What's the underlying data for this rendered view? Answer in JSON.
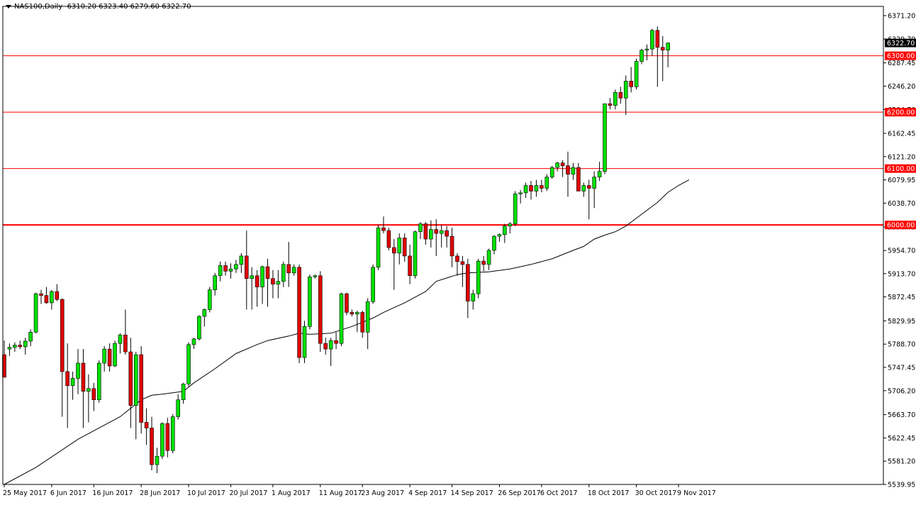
{
  "header": {
    "symbol": "NAS100,Daily",
    "ohlc": "6310.20 6323.40 6279.60 6322.70"
  },
  "colors": {
    "up": "#00e000",
    "down": "#e00000",
    "wick": "#000000",
    "level_line": "#ff0000",
    "ma_line": "#000000",
    "background": "#ffffff",
    "price_tag_bg": "#ff0000",
    "current_tag_bg": "#000000"
  },
  "chart_data": {
    "type": "candlestick",
    "title": "NAS100,Daily",
    "ylim": [
      5539.95,
      6371.2
    ],
    "y_ticks": [
      "6371.20",
      "6329.70",
      "6287.45",
      "6246.20",
      "6204.70",
      "6162.45",
      "6121.20",
      "6079.95",
      "6038.70",
      "5996.45",
      "5954.70",
      "5913.70",
      "5872.45",
      "5829.95",
      "5788.70",
      "5747.45",
      "5706.20",
      "5663.70",
      "5622.45",
      "5581.20",
      "5539.95"
    ],
    "x_labels": [
      "25 May 2017",
      "6 Jun 2017",
      "16 Jun 2017",
      "28 Jun 2017",
      "10 Jul 2017",
      "20 Jul 2017",
      "1 Aug 2017",
      "11 Aug 2017",
      "23 Aug 2017",
      "4 Sep 2017",
      "14 Sep 2017",
      "26 Sep 2017",
      "6 Oct 2017",
      "18 Oct 2017",
      "30 Oct 2017",
      "9 Nov 2017"
    ],
    "x_label_bar_index": [
      0,
      9,
      17,
      26,
      35,
      43,
      51,
      60,
      68,
      77,
      85,
      94,
      102,
      111,
      120,
      128
    ],
    "horizontal_levels": [
      {
        "price": 6300,
        "label": "6300.00",
        "width": 1
      },
      {
        "price": 6200,
        "label": "6200.00",
        "width": 1
      },
      {
        "price": 6100,
        "label": "6100.00",
        "width": 1
      },
      {
        "price": 6000,
        "label": "6000.00",
        "width": 2
      }
    ],
    "current_price": {
      "price": 6322.7,
      "label": "6322.70"
    },
    "candles": [
      [
        5770,
        5795,
        5730,
        5730
      ],
      [
        5780,
        5790,
        5768,
        5783
      ],
      [
        5783,
        5792,
        5775,
        5787
      ],
      [
        5787,
        5795,
        5780,
        5784
      ],
      [
        5784,
        5800,
        5770,
        5794
      ],
      [
        5794,
        5815,
        5785,
        5810
      ],
      [
        5810,
        5880,
        5808,
        5878
      ],
      [
        5878,
        5885,
        5860,
        5875
      ],
      [
        5875,
        5890,
        5860,
        5862
      ],
      [
        5862,
        5885,
        5850,
        5882
      ],
      [
        5882,
        5895,
        5865,
        5868
      ],
      [
        5868,
        5870,
        5660,
        5740
      ],
      [
        5740,
        5790,
        5640,
        5715
      ],
      [
        5715,
        5740,
        5690,
        5728
      ],
      [
        5728,
        5780,
        5700,
        5755
      ],
      [
        5755,
        5780,
        5640,
        5705
      ],
      [
        5705,
        5735,
        5650,
        5710
      ],
      [
        5710,
        5720,
        5670,
        5690
      ],
      [
        5690,
        5760,
        5685,
        5755
      ],
      [
        5755,
        5785,
        5740,
        5780
      ],
      [
        5780,
        5790,
        5740,
        5750
      ],
      [
        5750,
        5795,
        5748,
        5790
      ],
      [
        5790,
        5808,
        5772,
        5805
      ],
      [
        5805,
        5850,
        5770,
        5775
      ],
      [
        5775,
        5800,
        5640,
        5680
      ],
      [
        5680,
        5775,
        5620,
        5770
      ],
      [
        5770,
        5785,
        5630,
        5650
      ],
      [
        5650,
        5675,
        5610,
        5640
      ],
      [
        5640,
        5660,
        5565,
        5575
      ],
      [
        5575,
        5605,
        5560,
        5590
      ],
      [
        5590,
        5650,
        5585,
        5648
      ],
      [
        5648,
        5658,
        5588,
        5600
      ],
      [
        5600,
        5665,
        5595,
        5660
      ],
      [
        5660,
        5700,
        5655,
        5690
      ],
      [
        5690,
        5720,
        5683,
        5718
      ],
      [
        5718,
        5792,
        5714,
        5788
      ],
      [
        5788,
        5800,
        5780,
        5798
      ],
      [
        5798,
        5840,
        5795,
        5838
      ],
      [
        5838,
        5852,
        5820,
        5850
      ],
      [
        5850,
        5890,
        5845,
        5885
      ],
      [
        5885,
        5915,
        5875,
        5910
      ],
      [
        5910,
        5935,
        5900,
        5928
      ],
      [
        5928,
        5935,
        5910,
        5918
      ],
      [
        5918,
        5932,
        5905,
        5922
      ],
      [
        5922,
        5938,
        5915,
        5930
      ],
      [
        5930,
        5950,
        5915,
        5945
      ],
      [
        5945,
        5990,
        5850,
        5905
      ],
      [
        5905,
        5925,
        5850,
        5910
      ],
      [
        5910,
        5920,
        5855,
        5890
      ],
      [
        5890,
        5928,
        5860,
        5926
      ],
      [
        5926,
        5940,
        5855,
        5905
      ],
      [
        5905,
        5920,
        5870,
        5895
      ],
      [
        5895,
        5920,
        5870,
        5900
      ],
      [
        5900,
        5935,
        5890,
        5930
      ],
      [
        5930,
        5970,
        5890,
        5915
      ],
      [
        5915,
        5930,
        5910,
        5925
      ],
      [
        5925,
        5930,
        5755,
        5765
      ],
      [
        5765,
        5830,
        5755,
        5820
      ],
      [
        5820,
        5912,
        5815,
        5908
      ],
      [
        5908,
        5912,
        5905,
        5910
      ],
      [
        5910,
        5918,
        5775,
        5790
      ],
      [
        5790,
        5800,
        5770,
        5780
      ],
      [
        5780,
        5800,
        5750,
        5795
      ],
      [
        5795,
        5810,
        5780,
        5790
      ],
      [
        5790,
        5880,
        5785,
        5878
      ],
      [
        5878,
        5880,
        5840,
        5845
      ],
      [
        5845,
        5850,
        5838,
        5842
      ],
      [
        5842,
        5848,
        5810,
        5845
      ],
      [
        5845,
        5848,
        5800,
        5810
      ],
      [
        5810,
        5870,
        5780,
        5864
      ],
      [
        5864,
        5930,
        5860,
        5925
      ],
      [
        5925,
        6000,
        5920,
        5995
      ],
      [
        5995,
        6015,
        5985,
        5990
      ],
      [
        5990,
        5995,
        5955,
        5960
      ],
      [
        5960,
        5975,
        5885,
        5950
      ],
      [
        5950,
        5985,
        5930,
        5977
      ],
      [
        5977,
        5985,
        5935,
        5945
      ],
      [
        5945,
        5965,
        5895,
        5910
      ],
      [
        5910,
        5990,
        5905,
        5988
      ],
      [
        5988,
        6005,
        5975,
        6002
      ],
      [
        6002,
        6005,
        5965,
        5975
      ],
      [
        5975,
        6008,
        5960,
        5992
      ],
      [
        5992,
        6010,
        5945,
        5985
      ],
      [
        5985,
        6000,
        5960,
        5990
      ],
      [
        5990,
        5998,
        5960,
        5980
      ],
      [
        5980,
        5995,
        5925,
        5945
      ],
      [
        5945,
        5950,
        5910,
        5935
      ],
      [
        5935,
        5945,
        5890,
        5930
      ],
      [
        5930,
        5940,
        5835,
        5865
      ],
      [
        5865,
        5885,
        5850,
        5878
      ],
      [
        5878,
        5940,
        5870,
        5936
      ],
      [
        5936,
        5945,
        5918,
        5930
      ],
      [
        5930,
        5958,
        5920,
        5955
      ],
      [
        5955,
        5982,
        5948,
        5980
      ],
      [
        5980,
        5985,
        5970,
        5983
      ],
      [
        5983,
        6002,
        5968,
        5998
      ],
      [
        5998,
        6005,
        5985,
        6002
      ],
      [
        6002,
        6060,
        5998,
        6055
      ],
      [
        6055,
        6062,
        6038,
        6057
      ],
      [
        6057,
        6075,
        6048,
        6070
      ],
      [
        6070,
        6078,
        6045,
        6060
      ],
      [
        6060,
        6080,
        6050,
        6070
      ],
      [
        6070,
        6080,
        6058,
        6065
      ],
      [
        6065,
        6090,
        6060,
        6085
      ],
      [
        6085,
        6105,
        6082,
        6102
      ],
      [
        6102,
        6112,
        6095,
        6110
      ],
      [
        6110,
        6115,
        6085,
        6105
      ],
      [
        6105,
        6130,
        6050,
        6090
      ],
      [
        6090,
        6110,
        6080,
        6102
      ],
      [
        6102,
        6110,
        6065,
        6060
      ],
      [
        6060,
        6075,
        6050,
        6070
      ],
      [
        6070,
        6080,
        6010,
        6065
      ],
      [
        6065,
        6095,
        6030,
        6085
      ],
      [
        6085,
        6112,
        6078,
        6095
      ],
      [
        6095,
        6215,
        6090,
        6215
      ],
      [
        6215,
        6225,
        6205,
        6212
      ],
      [
        6212,
        6240,
        6205,
        6235
      ],
      [
        6235,
        6245,
        6215,
        6225
      ],
      [
        6225,
        6265,
        6195,
        6255
      ],
      [
        6255,
        6280,
        6235,
        6245
      ],
      [
        6245,
        6295,
        6240,
        6290
      ],
      [
        6290,
        6312,
        6285,
        6310
      ],
      [
        6310,
        6320,
        6292,
        6312
      ],
      [
        6312,
        6348,
        6300,
        6345
      ],
      [
        6345,
        6352,
        6245,
        6315
      ],
      [
        6315,
        6335,
        6255,
        6310
      ],
      [
        6310,
        6323.4,
        6279.6,
        6322.7
      ]
    ],
    "moving_average": [
      [
        0,
        5540
      ],
      [
        6,
        5570
      ],
      [
        14,
        5620
      ],
      [
        22,
        5660
      ],
      [
        26,
        5690
      ],
      [
        28,
        5698
      ],
      [
        30,
        5700
      ],
      [
        34,
        5705
      ],
      [
        36,
        5720
      ],
      [
        40,
        5745
      ],
      [
        44,
        5772
      ],
      [
        48,
        5788
      ],
      [
        50,
        5795
      ],
      [
        54,
        5803
      ],
      [
        56,
        5808
      ],
      [
        58,
        5806
      ],
      [
        62,
        5808
      ],
      [
        66,
        5820
      ],
      [
        70,
        5835
      ],
      [
        72,
        5845
      ],
      [
        76,
        5862
      ],
      [
        80,
        5882
      ],
      [
        82,
        5900
      ],
      [
        86,
        5912
      ],
      [
        88,
        5915
      ],
      [
        92,
        5917
      ],
      [
        96,
        5922
      ],
      [
        100,
        5930
      ],
      [
        104,
        5940
      ],
      [
        108,
        5955
      ],
      [
        110,
        5962
      ],
      [
        112,
        5975
      ],
      [
        114,
        5982
      ],
      [
        116,
        5988
      ],
      [
        118,
        5998
      ],
      [
        120,
        6012
      ],
      [
        124,
        6040
      ],
      [
        126,
        6058
      ],
      [
        128,
        6070
      ],
      [
        130,
        6080
      ]
    ]
  }
}
